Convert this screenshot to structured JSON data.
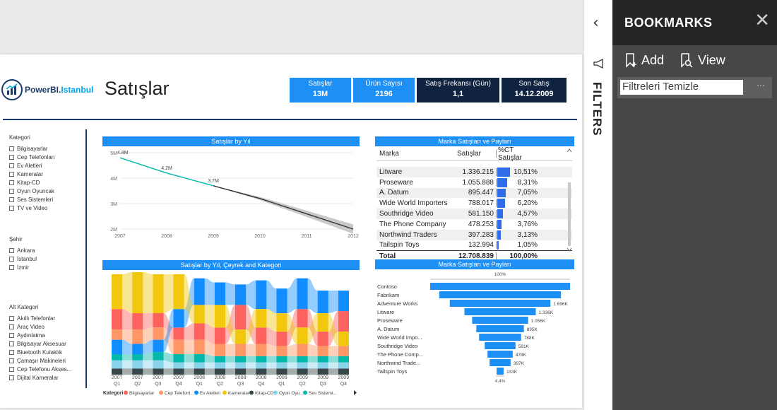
{
  "header": {
    "logo_text_main": "PowerBI.",
    "logo_text_accent": "Istanbul",
    "page_title": "Satışlar",
    "cards": [
      {
        "label": "Satışlar",
        "value": "13M",
        "color": "#1e90f5"
      },
      {
        "label": "Ürün Sayısı",
        "value": "2196",
        "color": "#1e90f5"
      },
      {
        "label": "Satış Frekansı (Gün)",
        "value": "1,1",
        "color": "#0f2340"
      },
      {
        "label": "Son Satış",
        "value": "14.12.2009",
        "color": "#0f2340"
      }
    ]
  },
  "slicers": {
    "kategori": {
      "title": "Kategori",
      "options": [
        "Bilgisayarlar",
        "Cep Telefonları",
        "Ev Aletleri",
        "Kameralar",
        "Kitap-CD",
        "Oyun Oyuncak",
        "Ses Sistemleri",
        "TV ve Video"
      ]
    },
    "sehir": {
      "title": "Şehir",
      "options": [
        "Ankara",
        "İstanbul",
        "İzmir"
      ]
    },
    "alt_kategori": {
      "title": "Alt Kategori",
      "options": [
        "Akıllı Telefonlar",
        "Araç Video",
        "Aydınlatma",
        "Bilgisayar Aksesuar",
        "Bluetooth Kulaklık",
        "Çamaşır Makineleri",
        "Cep Telefonu Akses...",
        "Dijital Kameralar"
      ]
    }
  },
  "visuals": {
    "line_title": "Satışlar by Yıl",
    "ribbon_title": "Satışlar by Yıl, Çeyrek and Kategori",
    "table_title": "Marka Satışları ve Payları",
    "funnel_title": "Marka Satışları ve Payları"
  },
  "ribbon_axis": [
    {
      "y": "2007",
      "q": "Q1"
    },
    {
      "y": "2007",
      "q": "Q2"
    },
    {
      "y": "2007",
      "q": "Q3"
    },
    {
      "y": "2007",
      "q": "Q4"
    },
    {
      "y": "2008",
      "q": "Q1"
    },
    {
      "y": "2008",
      "q": "Q2"
    },
    {
      "y": "2008",
      "q": "Q3"
    },
    {
      "y": "2008",
      "q": "Q4"
    },
    {
      "y": "2009",
      "q": "Q1"
    },
    {
      "y": "2009",
      "q": "Q2"
    },
    {
      "y": "2009",
      "q": "Q3"
    },
    {
      "y": "2009",
      "q": "Q4"
    }
  ],
  "ribbon_legend": {
    "title": "Kategori",
    "items": [
      {
        "name": "Bilgisayarlar",
        "color": "#fd625e"
      },
      {
        "name": "Cep Telefonl...",
        "color": "#fe9666"
      },
      {
        "name": "Ev Aletleri",
        "color": "#118dff"
      },
      {
        "name": "Kameralar",
        "color": "#f2c80f"
      },
      {
        "name": "Kitap-CD",
        "color": "#374649"
      },
      {
        "name": "Oyun Oyu...",
        "color": "#8ad4eb"
      },
      {
        "name": "Ses Sistemi...",
        "color": "#01b8aa"
      }
    ]
  },
  "marka_table": {
    "headers": [
      "Marka",
      "Satışlar",
      "%CT Satışlar"
    ],
    "rows": [
      {
        "marka": "Litware",
        "satis": "1.336.215",
        "pct": "10,51%",
        "frac": 0.1051
      },
      {
        "marka": "Proseware",
        "satis": "1.055.888",
        "pct": "8,31%",
        "frac": 0.0831
      },
      {
        "marka": "A. Datum",
        "satis": "895.447",
        "pct": "7,05%",
        "frac": 0.0705
      },
      {
        "marka": "Wide World Importers",
        "satis": "788.017",
        "pct": "6,20%",
        "frac": 0.062
      },
      {
        "marka": "Southridge Video",
        "satis": "581.150",
        "pct": "4,57%",
        "frac": 0.0457
      },
      {
        "marka": "The Phone Company",
        "satis": "478.253",
        "pct": "3,76%",
        "frac": 0.0376
      },
      {
        "marka": "Northwind Traders",
        "satis": "397.283",
        "pct": "3,13%",
        "frac": 0.0313
      },
      {
        "marka": "Tailspin Toys",
        "satis": "132.994",
        "pct": "1,05%",
        "frac": 0.0105
      }
    ],
    "total": {
      "label": "Total",
      "satis": "12.708.839",
      "pct": "100,00%"
    }
  },
  "funnel": {
    "top_label": "100%",
    "bottom_label": "4,4%",
    "items": [
      {
        "name": "Contoso",
        "value_label": ""
      },
      {
        "name": "Fabrikam",
        "value_label": ""
      },
      {
        "name": "Adventure Works",
        "value_label": "1.696K"
      },
      {
        "name": "Litware",
        "value_label": "1.336K"
      },
      {
        "name": "Proseware",
        "value_label": "1.056K"
      },
      {
        "name": "A. Datum",
        "value_label": "895K"
      },
      {
        "name": "Wide World Impo...",
        "value_label": "788K"
      },
      {
        "name": "Southridge Video",
        "value_label": "581K"
      },
      {
        "name": "The Phone Comp...",
        "value_label": "478K"
      },
      {
        "name": "Northwind Trade...",
        "value_label": "397K"
      },
      {
        "name": "Tailspin Toys",
        "value_label": "133K"
      }
    ],
    "widths": [
      1.0,
      0.87,
      0.72,
      0.51,
      0.4,
      0.34,
      0.3,
      0.22,
      0.18,
      0.15,
      0.05
    ]
  },
  "bookmarks": {
    "title": "BOOKMARKS",
    "add_label": "Add",
    "view_label": "View",
    "items": [
      "Filtreleri Temizle"
    ]
  },
  "filters_label": "FILTERS",
  "chart_data": {
    "type": "line",
    "title": "Satışlar by Yıl",
    "x": [
      2007,
      2008,
      2009,
      2010,
      2011,
      2012
    ],
    "series": [
      {
        "name": "",
        "values": [
          4.8,
          4.2,
          3.7,
          null,
          null,
          null
        ],
        "labels": [
          "4.8M",
          "4.2M",
          "3.7M"
        ]
      },
      {
        "name": "forecast",
        "values": [
          null,
          null,
          3.7,
          3.2,
          2.6,
          2.0
        ]
      }
    ],
    "yticks": [
      "2M",
      "3M",
      "4M",
      "5M"
    ],
    "ylim": [
      2,
      5
    ],
    "grid": true
  }
}
